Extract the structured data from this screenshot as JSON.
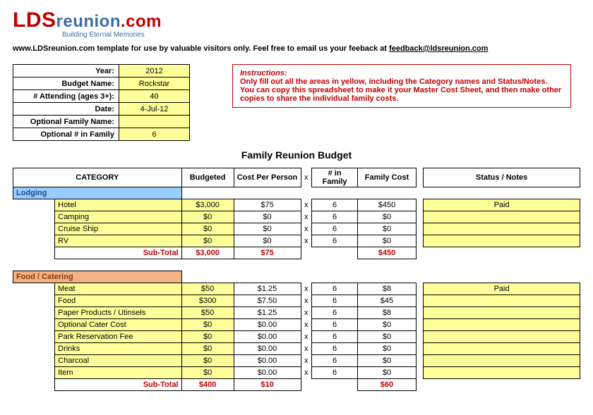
{
  "logo": {
    "lds": "LDS",
    "reunion": "reunion",
    "dotcom": ".com",
    "tagline": "Building Eternal Memories"
  },
  "template_line": {
    "prefix": "www.LDSreunion.com template for use by valuable visitors only. Feel free to email us your feeback at ",
    "email": "feedback@ldsreunion.com"
  },
  "info": {
    "rows": [
      {
        "label": "Year:",
        "value": "2012",
        "yellow": true
      },
      {
        "label": "Budget Name:",
        "value": "Rockstar",
        "yellow": true
      },
      {
        "label": "# Attending (ages 3+):",
        "value": "40",
        "yellow": true
      },
      {
        "label": "Date:",
        "value": "4-Jul-12",
        "yellow": true
      },
      {
        "label": "Optional Family Name:",
        "value": "",
        "yellow": true
      },
      {
        "label": "Optional # in Family",
        "value": "6",
        "yellow": true
      }
    ]
  },
  "instructions": {
    "head": "Instructions:",
    "body": "Only fill out all the areas in yellow, including the Category names and Status/Notes. You can copy this spreadsheet to make it your Master Cost Sheet, and then make other copies to share the individual family costs."
  },
  "main_title": "Family Reunion Budget",
  "headers": {
    "category": "CATEGORY",
    "budgeted": "Budgeted",
    "cpp": "Cost Per Person",
    "x": "x",
    "fam": "# in Family",
    "fcost": "Family Cost",
    "notes": "Status / Notes"
  },
  "sections": [
    {
      "key": "lodging",
      "title": "Lodging",
      "title_class": "lodging-hdr",
      "rows": [
        {
          "name": "Hotel",
          "budgeted": "$3,000",
          "cpp": "$75",
          "fam": "6",
          "fcost": "$450",
          "notes": "Paid"
        },
        {
          "name": "Camping",
          "budgeted": "$0",
          "cpp": "$0",
          "fam": "6",
          "fcost": "$0",
          "notes": ""
        },
        {
          "name": "Cruise Ship",
          "budgeted": "$0",
          "cpp": "$0",
          "fam": "6",
          "fcost": "$0",
          "notes": ""
        },
        {
          "name": "RV",
          "budgeted": "$0",
          "cpp": "$0",
          "fam": "6",
          "fcost": "$0",
          "notes": ""
        }
      ],
      "sub": {
        "label": "Sub-Total",
        "budgeted": "$3,000",
        "cpp": "$75",
        "fcost": "$450"
      }
    },
    {
      "key": "food",
      "title": "Food / Catering",
      "title_class": "food-hdr",
      "rows": [
        {
          "name": "Meat",
          "budgeted": "$50",
          "cpp": "$1.25",
          "fam": "6",
          "fcost": "$8",
          "notes": "Paid"
        },
        {
          "name": "Food",
          "budgeted": "$300",
          "cpp": "$7.50",
          "fam": "6",
          "fcost": "$45",
          "notes": ""
        },
        {
          "name": "Paper Products / Utinsels",
          "budgeted": "$50",
          "cpp": "$1.25",
          "fam": "6",
          "fcost": "$8",
          "notes": ""
        },
        {
          "name": "Optional Cater Cost",
          "budgeted": "$0",
          "cpp": "$0.00",
          "fam": "6",
          "fcost": "$0",
          "notes": ""
        },
        {
          "name": "Park Reservation Fee",
          "budgeted": "$0",
          "cpp": "$0.00",
          "fam": "6",
          "fcost": "$0",
          "notes": ""
        },
        {
          "name": "Drinks",
          "budgeted": "$0",
          "cpp": "$0.00",
          "fam": "6",
          "fcost": "$0",
          "notes": ""
        },
        {
          "name": "Charcoal",
          "budgeted": "$0",
          "cpp": "$0.00",
          "fam": "6",
          "fcost": "$0",
          "notes": ""
        },
        {
          "name": "Item",
          "budgeted": "$0",
          "cpp": "$0.00",
          "fam": "6",
          "fcost": "$0",
          "notes": ""
        }
      ],
      "sub": {
        "label": "Sub-Total",
        "budgeted": "$400",
        "cpp": "$10",
        "fcost": "$60"
      }
    }
  ]
}
